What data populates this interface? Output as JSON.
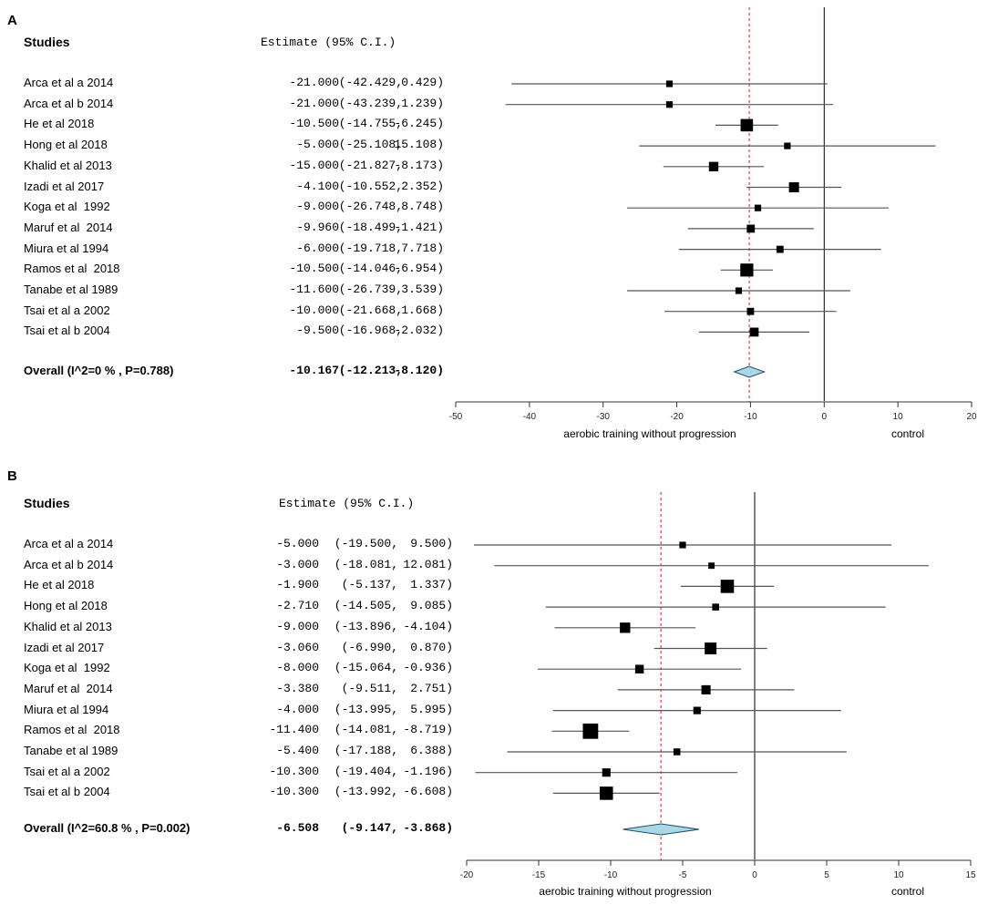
{
  "chart_data": [
    {
      "type": "forest",
      "panel": "A",
      "header_studies": "Studies",
      "header_estimate": "Estimate (95% C.I.)",
      "xlabel_left": "aerobic training without progression",
      "xlabel_right": "control",
      "xlim": [
        -50,
        20
      ],
      "xticks": [
        -50,
        -40,
        -30,
        -20,
        -10,
        0,
        10,
        20
      ],
      "reference_line": 0,
      "overall_line": -10.167,
      "studies": [
        {
          "name": "Arca et al a 2014",
          "est": -21.0,
          "lo": -42.429,
          "hi": 0.429,
          "est_text": "-21.000",
          "lo_text": "(-42.429,",
          "hi_text": "0.429)",
          "weight": 1
        },
        {
          "name": "Arca et al b 2014",
          "est": -21.0,
          "lo": -43.239,
          "hi": 1.239,
          "est_text": "-21.000",
          "lo_text": "(-43.239,",
          "hi_text": "1.239)",
          "weight": 1
        },
        {
          "name": "He et al 2018",
          "est": -10.5,
          "lo": -14.755,
          "hi": -6.245,
          "est_text": "-10.500",
          "lo_text": "(-14.755,",
          "hi_text": "-6.245)",
          "weight": 3
        },
        {
          "name": "Hong et al 2018",
          "est": -5.0,
          "lo": -25.108,
          "hi": 15.108,
          "est_text": "-5.000",
          "lo_text": "(-25.108,",
          "hi_text": "15.108)",
          "weight": 1
        },
        {
          "name": "Khalid et al 2013",
          "est": -15.0,
          "lo": -21.827,
          "hi": -8.173,
          "est_text": "-15.000",
          "lo_text": "(-21.827,",
          "hi_text": "-8.173)",
          "weight": 2
        },
        {
          "name": "Izadi et al 2017",
          "est": -4.1,
          "lo": -10.552,
          "hi": 2.352,
          "est_text": "-4.100",
          "lo_text": "(-10.552,",
          "hi_text": "2.352)",
          "weight": 2.2
        },
        {
          "name": "Koga et al  1992",
          "est": -9.0,
          "lo": -26.748,
          "hi": 8.748,
          "est_text": "-9.000",
          "lo_text": "(-26.748,",
          "hi_text": "8.748)",
          "weight": 1
        },
        {
          "name": "Maruf et al  2014",
          "est": -9.96,
          "lo": -18.499,
          "hi": -1.421,
          "est_text": "-9.960",
          "lo_text": "(-18.499,",
          "hi_text": "-1.421)",
          "weight": 1.5
        },
        {
          "name": "Miura et al 1994",
          "est": -6.0,
          "lo": -19.718,
          "hi": 7.718,
          "est_text": "-6.000",
          "lo_text": "(-19.718,",
          "hi_text": "7.718)",
          "weight": 1.2
        },
        {
          "name": "Ramos et al  2018",
          "est": -10.5,
          "lo": -14.046,
          "hi": -6.954,
          "est_text": "-10.500",
          "lo_text": "(-14.046,",
          "hi_text": "-6.954)",
          "weight": 3.2
        },
        {
          "name": "Tanabe et al 1989",
          "est": -11.6,
          "lo": -26.739,
          "hi": 3.539,
          "est_text": "-11.600",
          "lo_text": "(-26.739,",
          "hi_text": "3.539)",
          "weight": 1
        },
        {
          "name": "Tsai et al a 2002",
          "est": -10.0,
          "lo": -21.668,
          "hi": 1.668,
          "est_text": "-10.000",
          "lo_text": "(-21.668,",
          "hi_text": "1.668)",
          "weight": 1.2
        },
        {
          "name": "Tsai et al b 2004",
          "est": -9.5,
          "lo": -16.968,
          "hi": -2.032,
          "est_text": "-9.500",
          "lo_text": "(-16.968,",
          "hi_text": "-2.032)",
          "weight": 1.8
        }
      ],
      "overall": {
        "name": "Overall (I^2=0 % , P=0.788)",
        "est": -10.167,
        "lo": -12.213,
        "hi": -8.12,
        "est_text": "-10.167",
        "lo_text": "(-12.213,",
        "hi_text": "-8.120)"
      }
    },
    {
      "type": "forest",
      "panel": "B",
      "header_studies": "Studies",
      "header_estimate": "Estimate (95% C.I.)",
      "xlabel_left": "aerobic training without progression",
      "xlabel_right": "control",
      "xlim": [
        -20,
        15
      ],
      "xticks": [
        -20,
        -15,
        -10,
        -5,
        0,
        5,
        10,
        15
      ],
      "reference_line": 0,
      "overall_line": -6.508,
      "studies": [
        {
          "name": "Arca et al a 2014",
          "est": -5.0,
          "lo": -19.5,
          "hi": 9.5,
          "est_text": "-5.000",
          "lo_text": "(-19.500,",
          "hi_text": "9.500)",
          "weight": 1
        },
        {
          "name": "Arca et al b 2014",
          "est": -3.0,
          "lo": -18.081,
          "hi": 12.081,
          "est_text": "-3.000",
          "lo_text": "(-18.081,",
          "hi_text": "12.081)",
          "weight": 0.9
        },
        {
          "name": "He et al 2018",
          "est": -1.9,
          "lo": -5.137,
          "hi": 1.337,
          "est_text": "-1.900",
          "lo_text": "(-5.137,",
          "hi_text": "1.337)",
          "weight": 3.3
        },
        {
          "name": "Hong et al 2018",
          "est": -2.71,
          "lo": -14.505,
          "hi": 9.085,
          "est_text": "-2.710",
          "lo_text": "(-14.505,",
          "hi_text": "9.085)",
          "weight": 1.1
        },
        {
          "name": "Khalid et al 2013",
          "est": -9.0,
          "lo": -13.896,
          "hi": -4.104,
          "est_text": "-9.000",
          "lo_text": "(-13.896,",
          "hi_text": "-4.104)",
          "weight": 2.3
        },
        {
          "name": "Izadi et al 2017",
          "est": -3.06,
          "lo": -6.99,
          "hi": 0.87,
          "est_text": "-3.060",
          "lo_text": "(-6.990,",
          "hi_text": "0.870)",
          "weight": 2.8
        },
        {
          "name": "Koga et al  1992",
          "est": -8.0,
          "lo": -15.064,
          "hi": -0.936,
          "est_text": "-8.000",
          "lo_text": "(-15.064,",
          "hi_text": "-0.936)",
          "weight": 1.7
        },
        {
          "name": "Maruf et al  2014",
          "est": -3.38,
          "lo": -9.511,
          "hi": 2.751,
          "est_text": "-3.380",
          "lo_text": "(-9.511,",
          "hi_text": "2.751)",
          "weight": 1.9
        },
        {
          "name": "Miura et al 1994",
          "est": -4.0,
          "lo": -13.995,
          "hi": 5.995,
          "est_text": "-4.000",
          "lo_text": "(-13.995,",
          "hi_text": "5.995)",
          "weight": 1.3
        },
        {
          "name": "Ramos et al  2018",
          "est": -11.4,
          "lo": -14.081,
          "hi": -8.719,
          "est_text": "-11.400",
          "lo_text": "(-14.081,",
          "hi_text": "-8.719)",
          "weight": 4
        },
        {
          "name": "Tanabe et al 1989",
          "est": -5.4,
          "lo": -17.188,
          "hi": 6.388,
          "est_text": "-5.400",
          "lo_text": "(-17.188,",
          "hi_text": "6.388)",
          "weight": 1.1
        },
        {
          "name": "Tsai et al a 2002",
          "est": -10.3,
          "lo": -19.404,
          "hi": -1.196,
          "est_text": "-10.300",
          "lo_text": "(-19.404,",
          "hi_text": "-1.196)",
          "weight": 1.6
        },
        {
          "name": "Tsai et al b 2004",
          "est": -10.3,
          "lo": -13.992,
          "hi": -6.608,
          "est_text": "-10.300",
          "lo_text": "(-13.992,",
          "hi_text": "-6.608)",
          "weight": 3.3
        }
      ],
      "overall": {
        "name": "Overall (I^2=60.8 % , P=0.002)",
        "est": -6.508,
        "lo": -9.147,
        "hi": -3.868,
        "est_text": "-6.508",
        "lo_text": "(-9.147,",
        "hi_text": "-3.868)"
      }
    }
  ],
  "labels": {
    "panel_a": "A",
    "panel_b": "B"
  },
  "colors": {
    "ci_line": "#555555",
    "marker": "#000000",
    "diamond_fill": "#a9d7e6",
    "diamond_stroke": "#1f4f6b",
    "overall_line": "#e0403a",
    "axis": "#333333"
  }
}
